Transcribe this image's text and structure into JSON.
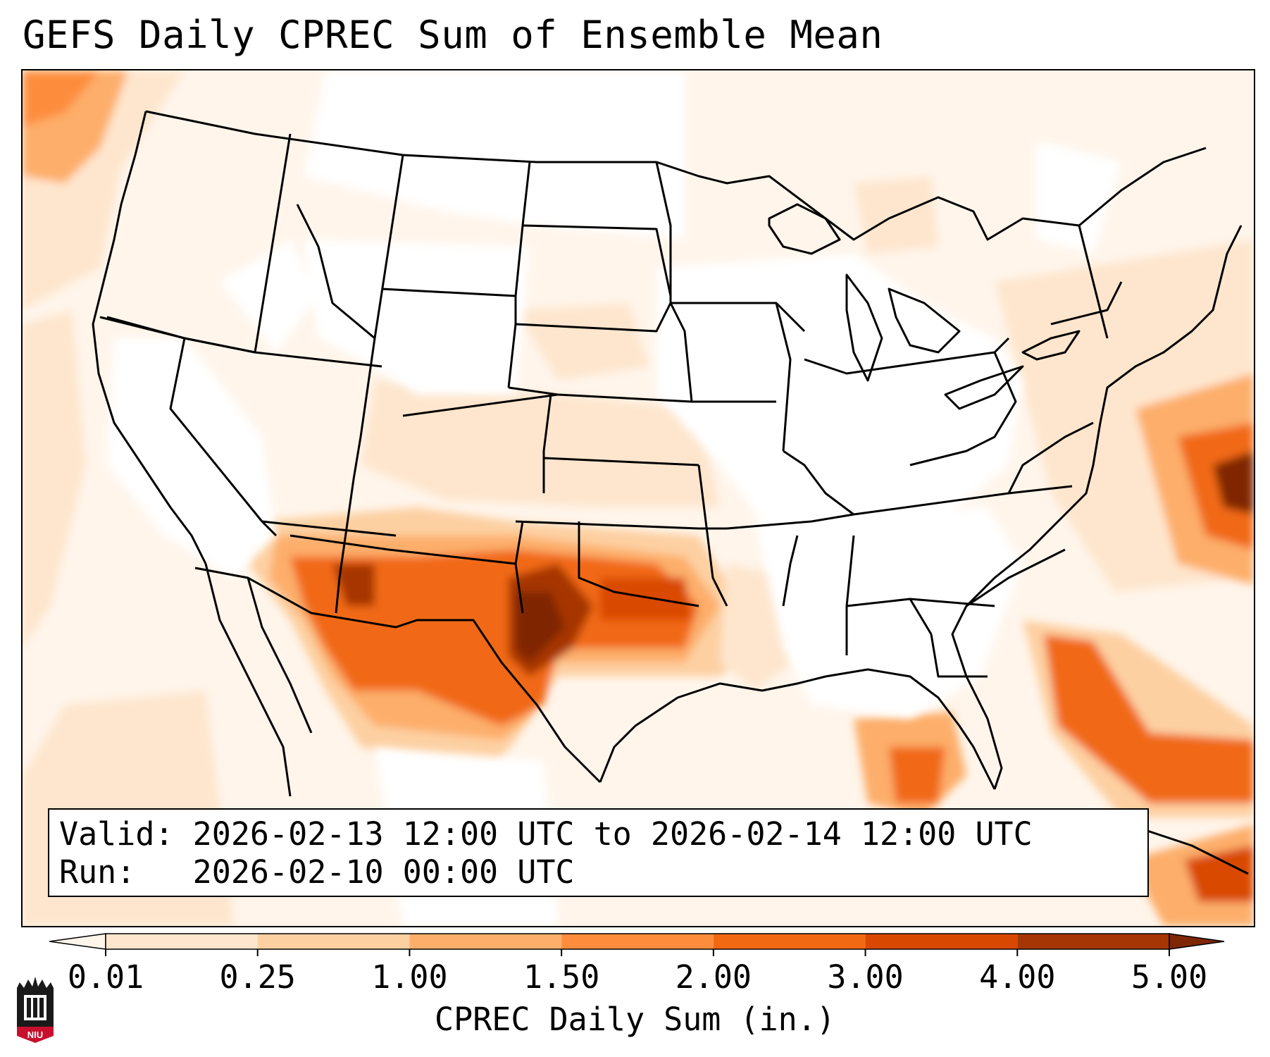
{
  "title": "GEFS Daily CPREC Sum of Ensemble Mean",
  "info": {
    "valid_label": "Valid:",
    "valid_value": "2026-02-13 12:00 UTC to 2026-02-14 12:00 UTC",
    "run_label": "Run:",
    "run_value": "2026-02-10 00:00 UTC"
  },
  "colorbar": {
    "label": "CPREC Daily Sum (in.)",
    "ticks": [
      "0.01",
      "0.25",
      "1.00",
      "1.50",
      "2.00",
      "3.00",
      "4.00",
      "5.00"
    ],
    "colors": [
      "#fff5eb",
      "#fee6ce",
      "#fdd0a2",
      "#fdae6b",
      "#fd8d3c",
      "#f16913",
      "#d94801",
      "#a63603",
      "#7f2704"
    ]
  },
  "logo": {
    "text": "NIU"
  }
}
